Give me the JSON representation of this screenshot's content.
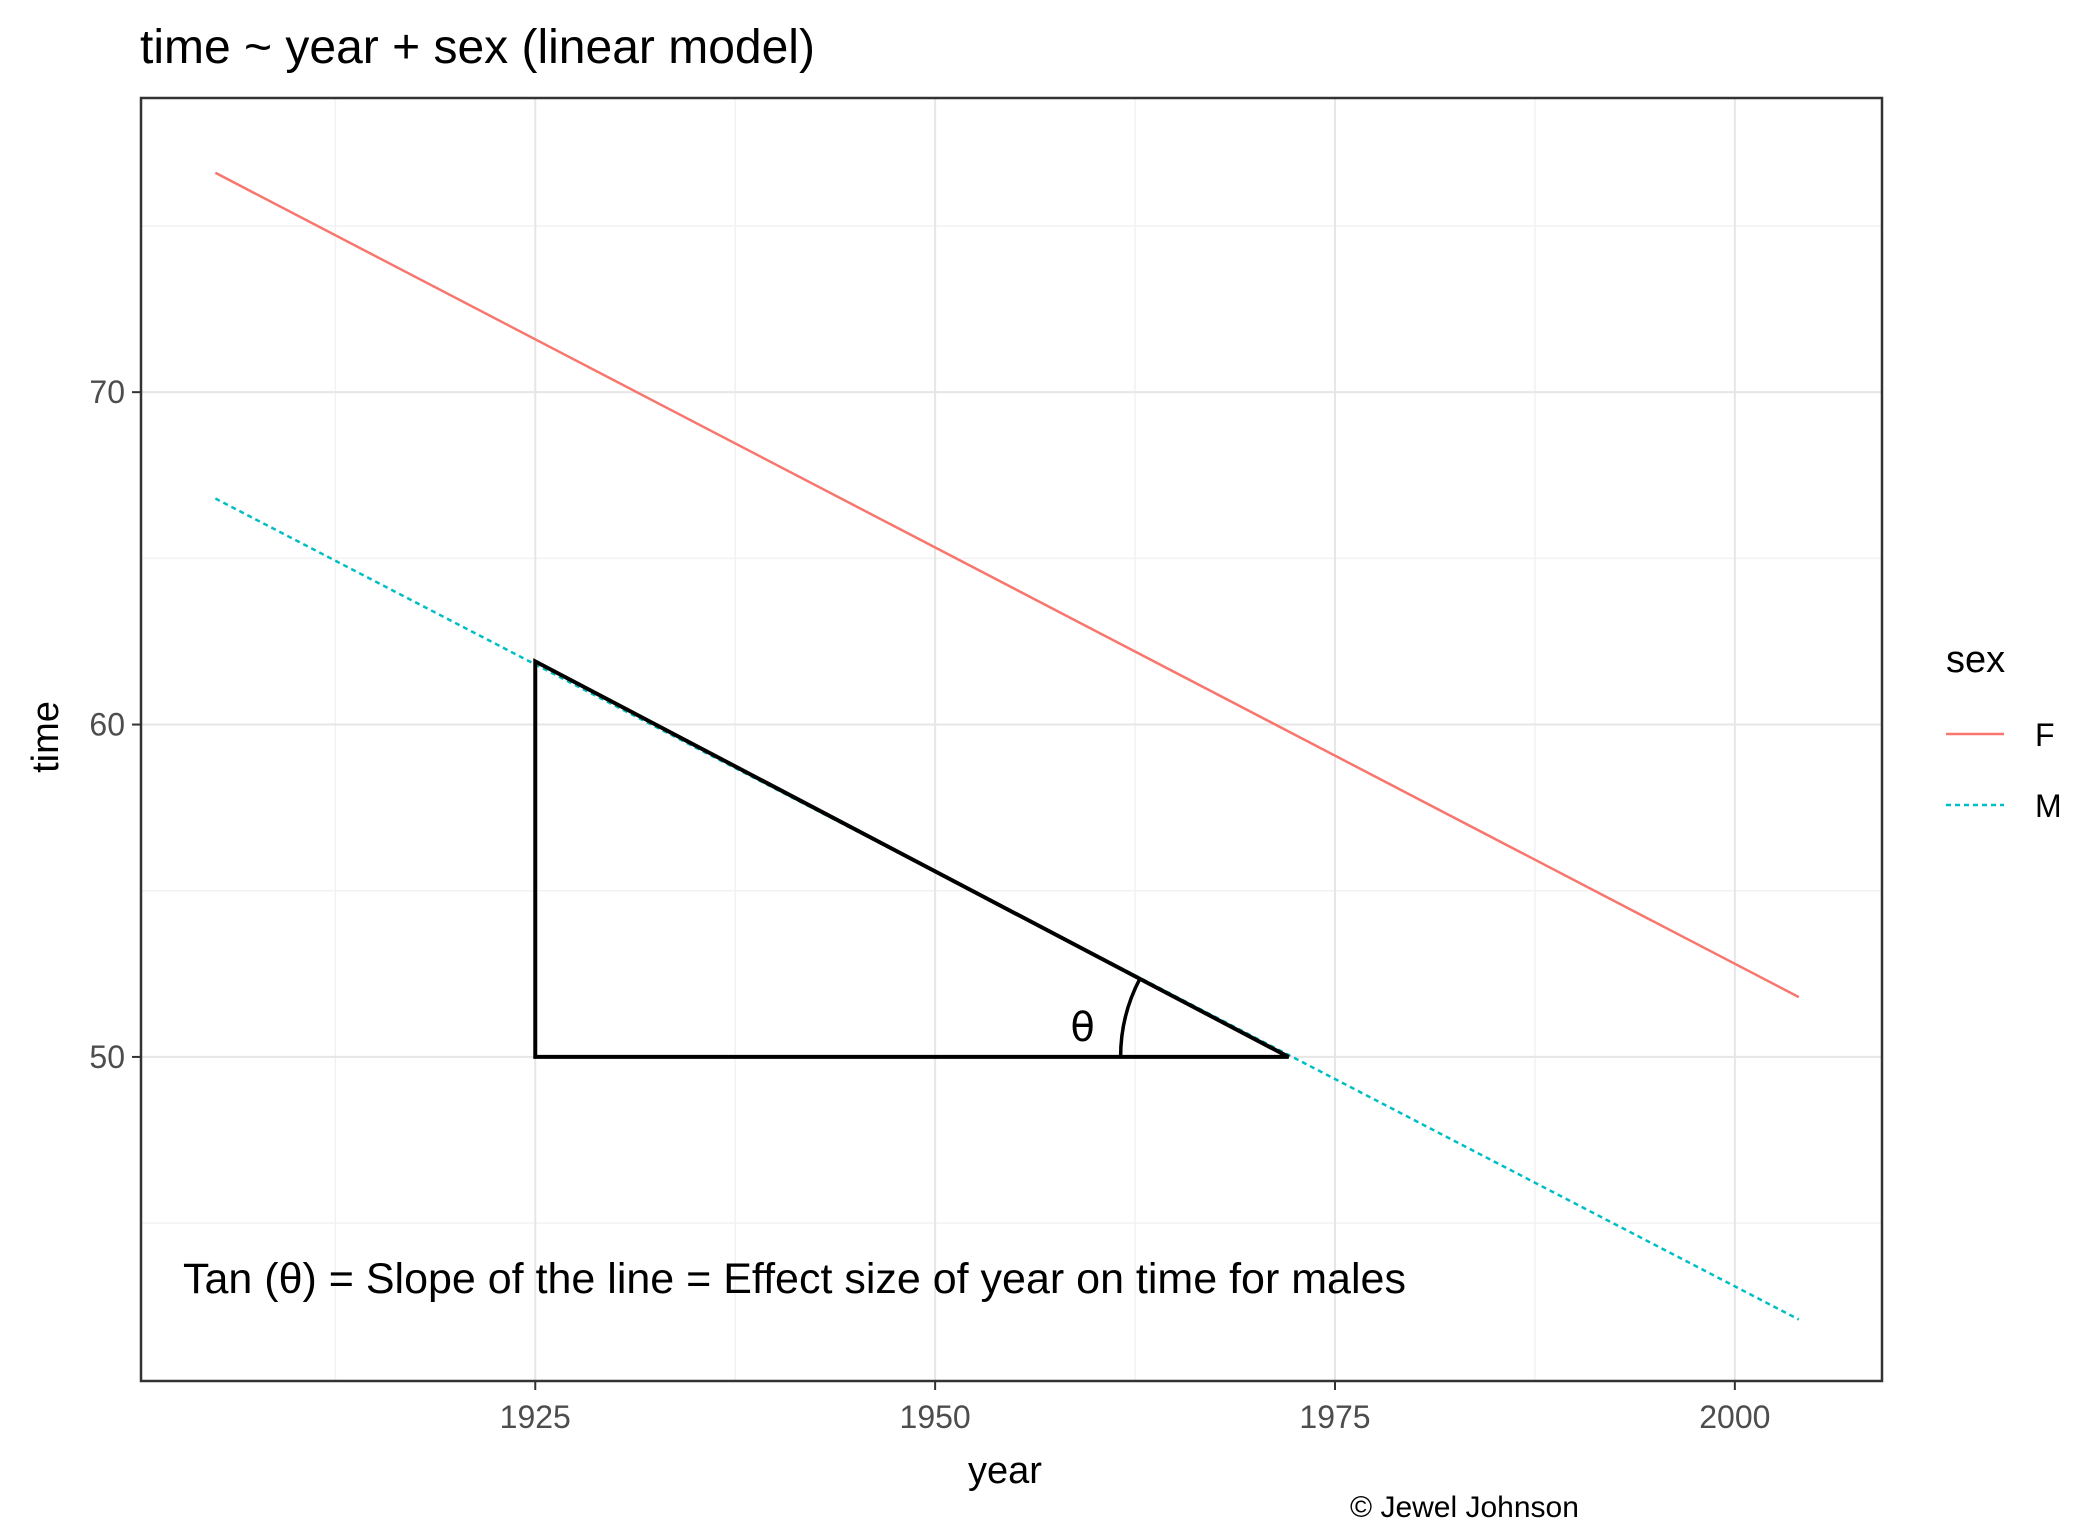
{
  "chart_data": {
    "type": "line",
    "title": "time ~ year + sex (linear model)",
    "xlabel": "year",
    "ylabel": "time",
    "xlim": [
      1900.35,
      2009.2
    ],
    "ylim": [
      40.25,
      78.85
    ],
    "x_ticks": [
      1925,
      1950,
      1975,
      2000
    ],
    "x_tick_labels": [
      "1925",
      "1950",
      "1975",
      "2000"
    ],
    "y_ticks": [
      50,
      60,
      70
    ],
    "y_tick_labels": [
      "50",
      "60",
      "70"
    ],
    "grid": true,
    "legend": {
      "title": "sex",
      "position": "right"
    },
    "series": [
      {
        "name": "F",
        "color": "#f8766d",
        "style": "solid",
        "x": [
          1905,
          2004
        ],
        "y": [
          76.6,
          51.8
        ]
      },
      {
        "name": "M",
        "color": "#00bfc4",
        "style": "dotted",
        "x": [
          1905,
          2004
        ],
        "y": [
          66.8,
          42.1
        ]
      }
    ],
    "annotations": {
      "triangle": {
        "x": [
          1925,
          1925,
          1972.1
        ],
        "y": [
          61.9,
          50,
          50
        ]
      },
      "angle_label": "θ",
      "text": "Tan (θ) = Slope of the line = Effect size of year on time for males",
      "copyright": "© Jewel Johnson"
    }
  }
}
